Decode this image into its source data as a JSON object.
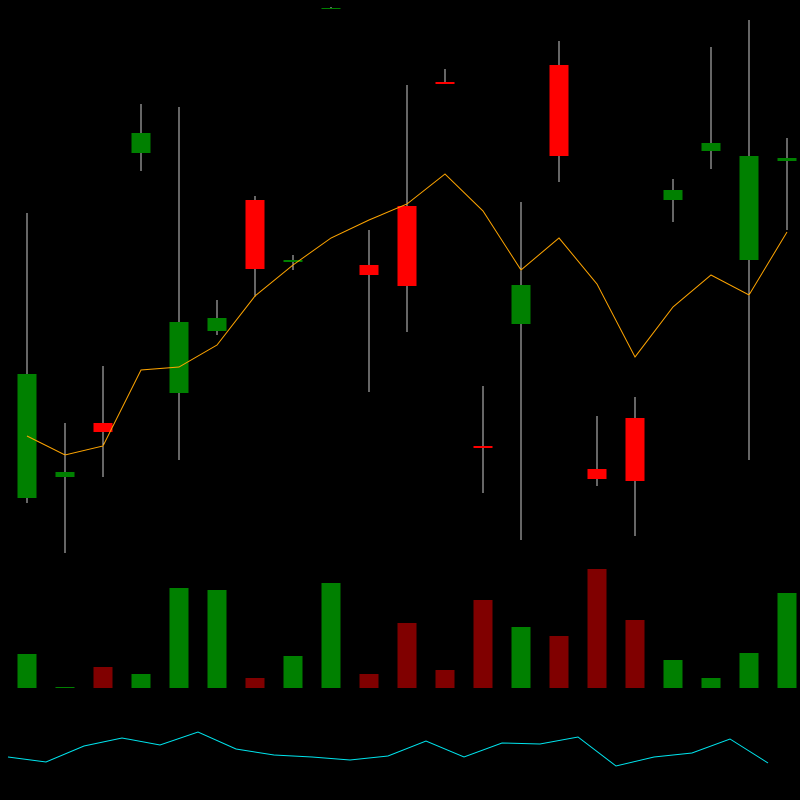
{
  "chart_data": {
    "type": "candlestick",
    "up_color": "#008000",
    "down_color": "#ff0000",
    "wick_color": "#cccccc",
    "ylim": [
      0,
      560
    ],
    "open": [
      62,
      83,
      137,
      407,
      167,
      229,
      360,
      298,
      552,
      295,
      354,
      478,
      114,
      236,
      495,
      91,
      142,
      360,
      409,
      300,
      399
    ],
    "close": [
      186,
      88,
      128,
      427,
      238,
      242,
      291,
      300,
      552,
      285,
      274,
      476,
      112,
      275,
      404,
      81,
      79,
      370,
      417,
      404,
      402
    ],
    "high": [
      347,
      137,
      194,
      456,
      453,
      260,
      364,
      305,
      553,
      330,
      475,
      491,
      174,
      358,
      519,
      144,
      163,
      381,
      513,
      540,
      422
    ],
    "low": [
      57,
      7,
      83,
      389,
      100,
      225,
      263,
      290,
      551,
      168,
      228,
      476,
      67,
      20,
      378,
      74,
      24,
      338,
      391,
      100,
      330
    ],
    "moving_average": {
      "color": "#ffa500",
      "values": [
        124,
        105,
        114,
        190,
        193,
        215,
        264,
        295,
        322,
        340,
        356,
        386,
        349,
        290,
        322,
        276,
        203,
        253,
        285,
        265,
        328
      ]
    },
    "volume": {
      "ylim": [
        0,
        128
      ],
      "up_color": "#008000",
      "down_color": "#800000",
      "values": [
        34,
        1,
        21,
        14,
        100,
        98,
        10,
        32,
        105,
        14,
        65,
        18,
        88,
        61,
        52,
        119,
        68,
        28,
        10,
        35,
        95
      ]
    },
    "indicator": {
      "ylim": [
        0,
        100
      ],
      "color": "#00e5ee",
      "values": [
        43,
        38,
        54,
        62,
        55,
        68,
        51,
        45,
        43,
        40,
        44,
        59,
        43,
        57,
        56,
        63,
        34,
        43,
        47,
        61,
        37
      ]
    }
  }
}
